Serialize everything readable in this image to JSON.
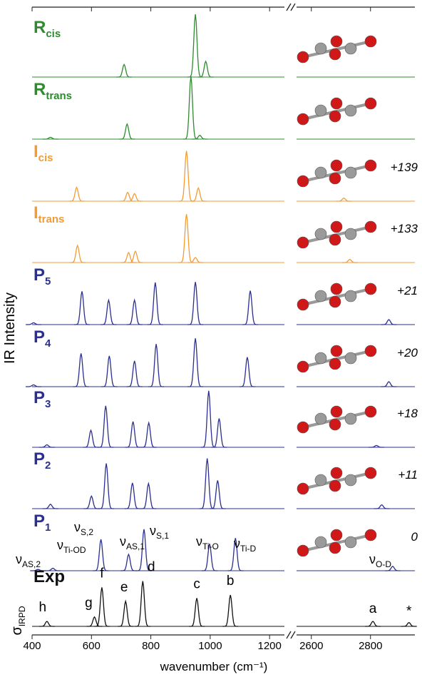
{
  "chart_data": {
    "type": "spectra",
    "y_label": "IR Intensity",
    "x_label": "wavenumber (cm⁻¹)",
    "xlim": [
      400,
      1250
    ],
    "xticks": [
      400,
      600,
      800,
      1000,
      1200
    ],
    "x2lim": [
      2550,
      2950
    ],
    "x2ticks": [
      2600,
      2800
    ],
    "ylim": [
      0,
      100
    ],
    "series": [
      {
        "name": "R",
        "sub": "cis",
        "color": "#2e8b2e",
        "x": [
          710,
          950,
          985
        ],
        "values": [
          20,
          100,
          25
        ]
      },
      {
        "name": "R",
        "sub": "trans",
        "color": "#2e8b2e",
        "x": [
          462,
          720,
          935,
          965
        ],
        "values": [
          3,
          24,
          100,
          6
        ]
      },
      {
        "name": "I",
        "sub": "cis",
        "energy": "+139",
        "color": "#f39c34",
        "x": [
          550,
          722,
          745,
          920,
          960,
          2710
        ],
        "values": [
          22,
          14,
          12,
          80,
          21,
          5
        ]
      },
      {
        "name": "I",
        "sub": "trans",
        "energy": "+133",
        "color": "#f39c34",
        "x": [
          553,
          725,
          748,
          920,
          950,
          2730
        ],
        "values": [
          27,
          16,
          18,
          77,
          8,
          5
        ]
      },
      {
        "name": "P",
        "sub": "5",
        "energy": "+21",
        "color": "#2b2f8f",
        "x": [
          405,
          568,
          658,
          745,
          815,
          950,
          1135,
          2862
        ],
        "values": [
          3,
          53,
          39,
          39,
          67,
          68,
          54,
          8
        ]
      },
      {
        "name": "P",
        "sub": "4",
        "energy": "+20",
        "color": "#2b2f8f",
        "x": [
          405,
          565,
          660,
          745,
          818,
          950,
          1125,
          2862
        ],
        "values": [
          3,
          53,
          49,
          41,
          68,
          77,
          47,
          8
        ]
      },
      {
        "name": "P",
        "sub": "3",
        "energy": "+18",
        "color": "#2b2f8f",
        "x": [
          450,
          598,
          648,
          740,
          793,
          995,
          1030,
          2820
        ],
        "values": [
          4,
          27,
          66,
          41,
          39,
          90,
          46,
          3
        ]
      },
      {
        "name": "P",
        "sub": "2",
        "energy": "+11",
        "color": "#2b2f8f",
        "x": [
          462,
          600,
          650,
          738,
          792,
          990,
          1025,
          2838
        ],
        "values": [
          7,
          20,
          72,
          41,
          40,
          80,
          45,
          6
        ]
      },
      {
        "name": "P",
        "sub": "1",
        "energy": "0",
        "color": "#2b2f8f",
        "x": [
          420,
          470,
          632,
          725,
          777,
          998,
          1085,
          2875
        ],
        "values": [
          2,
          4,
          50,
          26,
          66,
          43,
          52,
          7
        ],
        "modes": [
          {
            "text": "ν",
            "sub": "AS,2"
          },
          {
            "text": "ν",
            "sub": "Ti-OD"
          },
          {
            "text": "ν",
            "sub": "S,2"
          },
          {
            "text": "ν",
            "sub": "AS,1"
          },
          {
            "text": "ν",
            "sub": "S,1"
          },
          {
            "text": "ν",
            "sub": "Ti-O"
          },
          {
            "text": "ν",
            "sub": "Ti-D"
          },
          {
            "text": "ν",
            "sub": "O-D"
          }
        ]
      },
      {
        "name": "Exp",
        "y_symbol": "σ",
        "y_sub": "IRPD",
        "color": "#111111",
        "x": [
          450,
          610,
          635,
          715,
          773,
          955,
          1068,
          2808,
          2930
        ],
        "values": [
          8,
          15,
          62,
          40,
          72,
          45,
          50,
          8,
          6
        ],
        "annotations": [
          "h",
          "g",
          "f",
          "e",
          "d",
          "c",
          "b",
          "a",
          "*"
        ]
      }
    ]
  }
}
